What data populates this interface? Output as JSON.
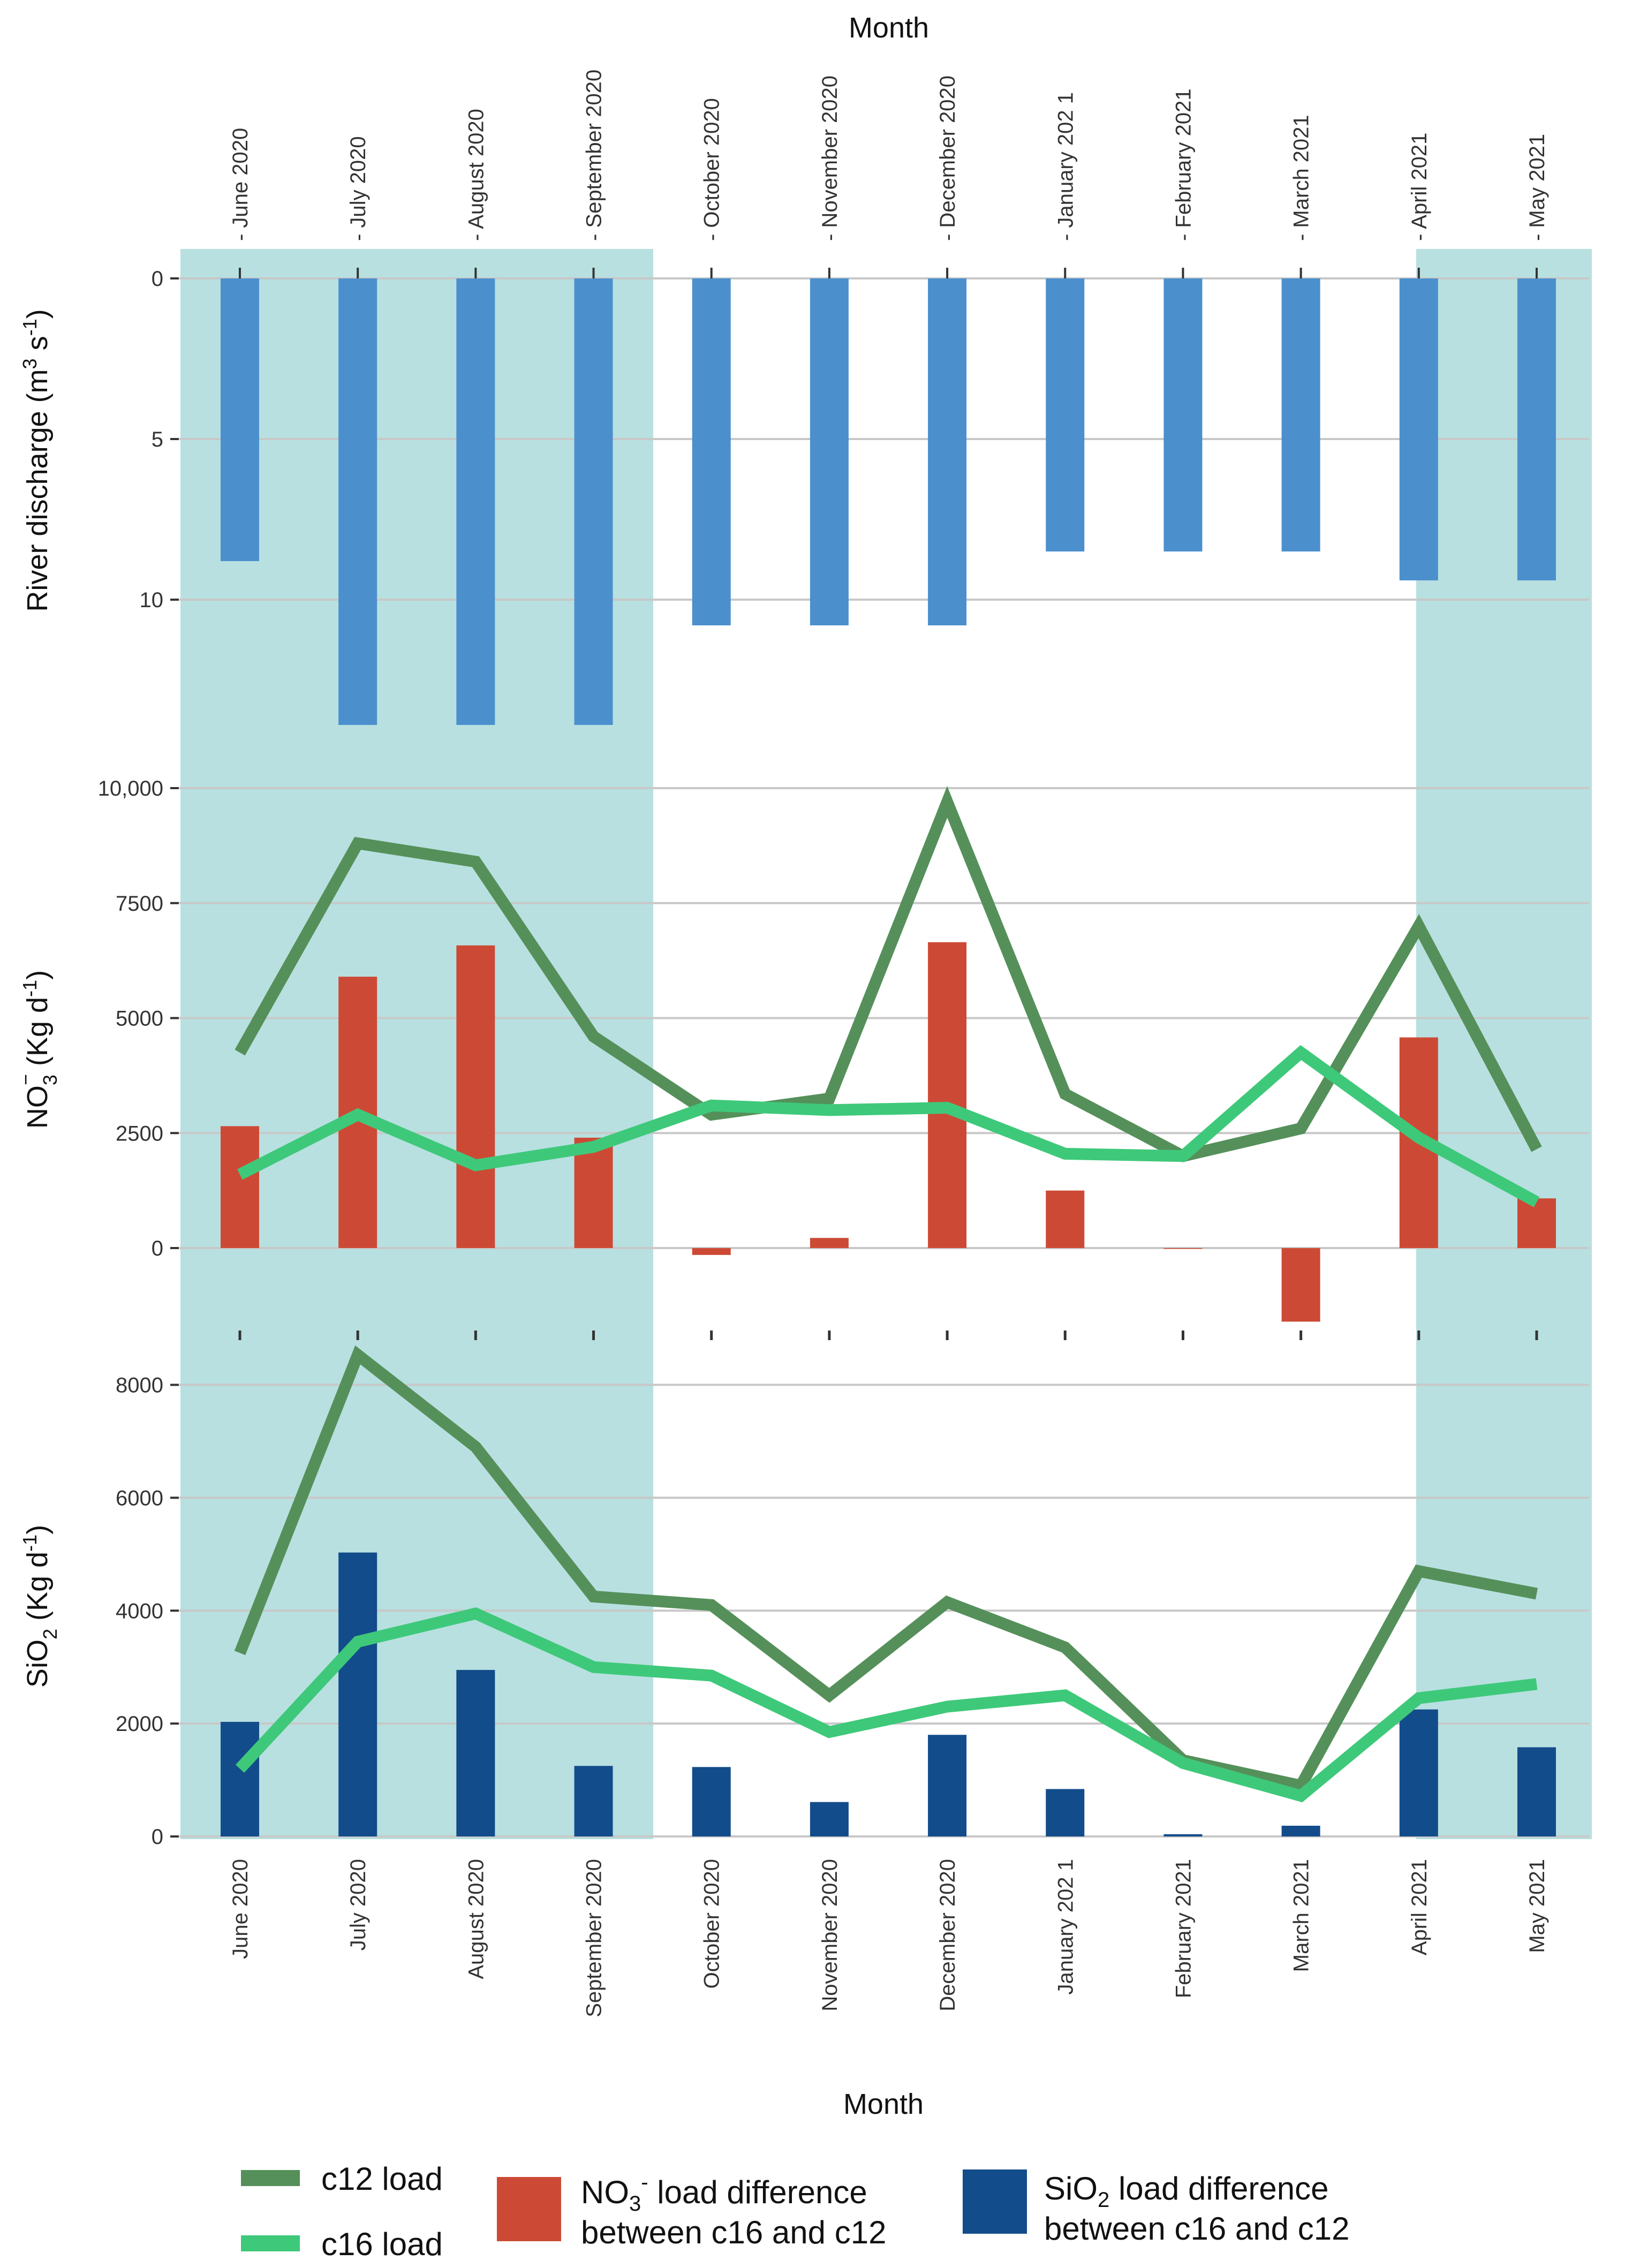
{
  "figure": {
    "top_axis_title": "Month",
    "bottom_axis_title": "Month",
    "months": [
      "June 2020",
      "July 2020",
      "August 2020",
      "September 2020",
      "October 2020",
      "November 2020",
      "December 2020",
      "January 202 1",
      "February 2021",
      "March 2021",
      "April 2021",
      "May 2021"
    ],
    "top_month_labels": [
      "- June 2020",
      "- July 2020",
      "- August 2020",
      "- September 2020",
      "- October 2020",
      "- November 2020",
      "- December 2020",
      "- January 202 1",
      "- February 2021",
      "- March 2021",
      "- April 2021",
      "- May 2021"
    ],
    "shading_color": "#b8e0e0",
    "shaded_months": [
      "June 2020",
      "July 2020",
      "August 2020",
      "September 2020",
      "April 2021",
      "May 2021"
    ]
  },
  "chart_data": [
    {
      "type": "bar",
      "panel": "discharge",
      "ylabel_main": "River discharge (m",
      "ylabel_sup1": "3",
      "ylabel_mid": " s",
      "ylabel_sup2": "-1",
      "ylabel_end": ")",
      "reversed_axis": true,
      "ylim": [
        0,
        15
      ],
      "yticks": [
        0,
        5,
        10
      ],
      "ytick_labels": [
        "0",
        "5",
        "10"
      ],
      "categories": [
        "June 2020",
        "July 2020",
        "August 2020",
        "September 2020",
        "October 2020",
        "November 2020",
        "December 2020",
        "January 202 1",
        "February 2021",
        "March 2021",
        "April 2021",
        "May 2021"
      ],
      "series": [
        {
          "name": "River discharge",
          "color": "#4b90cd",
          "values": [
            8.8,
            13.9,
            13.9,
            13.9,
            10.8,
            10.8,
            10.8,
            8.5,
            8.5,
            8.5,
            9.4,
            9.4
          ]
        }
      ]
    },
    {
      "type": "bar+line",
      "panel": "nitrate",
      "ylabel_main": "NO",
      "ylabel_sub": "3",
      "ylabel_sup": "−",
      "ylabel_rest": " (Kg  d",
      "ylabel_sup2": "-1",
      "ylabel_end": ")",
      "ylim": [
        -2200,
        10000
      ],
      "yticks": [
        0,
        2500,
        5000,
        7500,
        10000
      ],
      "ytick_labels": [
        "0",
        "2500",
        "5000",
        "7500",
        "10,000"
      ],
      "categories": [
        "June 2020",
        "July 2020",
        "August 2020",
        "September 2020",
        "October 2020",
        "November 2020",
        "December 2020",
        "January 202 1",
        "February 2021",
        "March 2021",
        "April 2021",
        "May 2021"
      ],
      "series": [
        {
          "name": "NO3- load difference between c16 and c12",
          "kind": "bar",
          "color": "#cc4a35",
          "values": [
            2650,
            5900,
            6580,
            2400,
            -150,
            220,
            6650,
            1250,
            0,
            -1600,
            4580,
            1080
          ]
        },
        {
          "name": "c12 load",
          "kind": "line",
          "color": "#55905a",
          "values": [
            4250,
            8800,
            8400,
            4600,
            2900,
            3250,
            9700,
            3350,
            2000,
            2600,
            7000,
            2150
          ]
        },
        {
          "name": "c16 load",
          "kind": "line",
          "color": "#3ec97a",
          "values": [
            1600,
            2900,
            1800,
            2200,
            3100,
            3000,
            3050,
            2050,
            2000,
            4250,
            2400,
            1000
          ]
        }
      ]
    },
    {
      "type": "bar+line",
      "panel": "silica",
      "ylabel_main": "SiO",
      "ylabel_sub": "2",
      "ylabel_rest": " (Kg  d",
      "ylabel_sup2": "-1",
      "ylabel_end": ")",
      "ylim": [
        0,
        9200
      ],
      "yticks": [
        0,
        2000,
        4000,
        6000,
        8000
      ],
      "ytick_labels": [
        "0",
        "2000",
        "4000",
        "6000",
        "8000"
      ],
      "categories": [
        "June 2020",
        "July 2020",
        "August 2020",
        "September 2020",
        "October 2020",
        "November 2020",
        "December 2020",
        "January 202 1",
        "February 2021",
        "March 2021",
        "April 2021",
        "May 2021"
      ],
      "series": [
        {
          "name": "SiO2 load difference between c16 and c12",
          "kind": "bar",
          "color": "#134c8a",
          "values": [
            2030,
            5030,
            2950,
            1250,
            1230,
            610,
            1800,
            840,
            40,
            190,
            2250,
            1580
          ]
        },
        {
          "name": "c12 load",
          "kind": "line",
          "color": "#55905a",
          "values": [
            3250,
            8530,
            6900,
            4250,
            4100,
            2500,
            4150,
            3350,
            1350,
            900,
            4700,
            4300
          ]
        },
        {
          "name": "c16 load",
          "kind": "line",
          "color": "#3ec97a",
          "values": [
            1200,
            3450,
            3950,
            3000,
            2850,
            1850,
            2300,
            2500,
            1300,
            720,
            2450,
            2700
          ]
        }
      ]
    }
  ],
  "legend": {
    "c12_label": "c12 load",
    "c12_color": "#55905a",
    "c16_label": "c16 load",
    "c16_color": "#3ec97a",
    "no3_line1_main": "NO",
    "no3_line1_sub": "3",
    "no3_line1_sup": "-",
    "no3_line1_rest": " load difference",
    "no3_line2": "between c16 and c12",
    "no3_color": "#cc4a35",
    "sio2_line1_main": "SiO",
    "sio2_line1_sub": "2",
    "sio2_line1_rest": " load difference",
    "sio2_line2": "between c16 and c12",
    "sio2_color": "#134c8a"
  }
}
